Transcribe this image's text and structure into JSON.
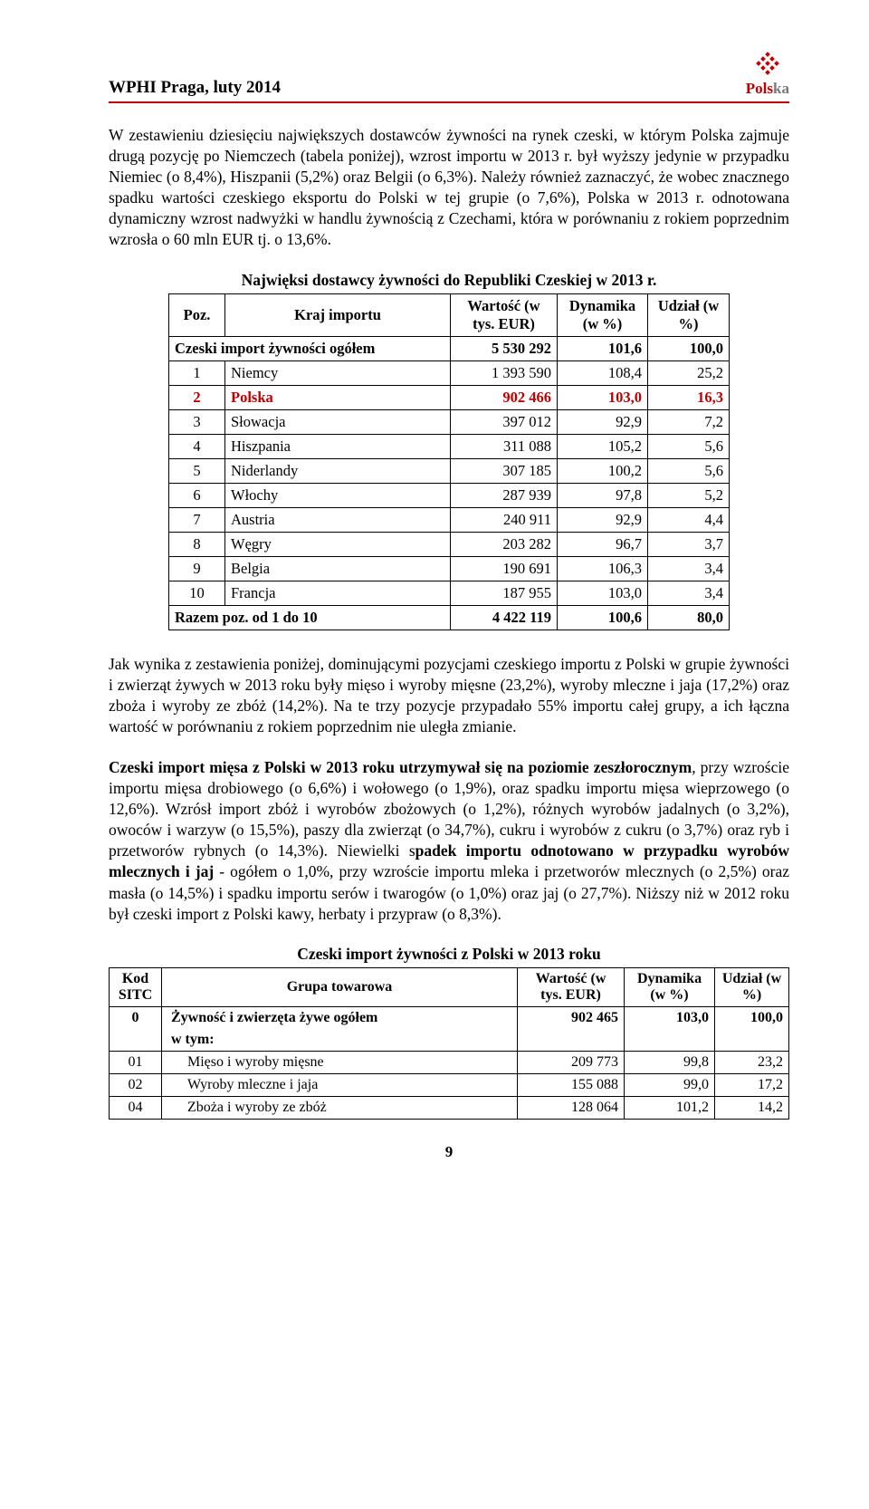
{
  "header": {
    "left": "WPHI  Praga, luty 2014",
    "logo_red": "Pols",
    "logo_gray": "ka"
  },
  "para1": "W zestawieniu dziesięciu największych dostawców żywności na rynek czeski, w którym Polska zajmuje drugą pozycję po Niemczech (tabela poniżej), wzrost importu w 2013 r. był wyższy jedynie w przypadku Niemiec (o 8,4%), Hiszpanii (5,2%) oraz Belgii (o 6,3%). Należy również zaznaczyć, że wobec znacznego spadku wartości czeskiego eksportu do Polski w tej grupie (o 7,6%), Polska w 2013 r. odnotowana dynamiczny wzrost nadwyżki w handlu żywnością z Czechami, która w porównaniu z rokiem poprzednim wzrosła o 60 mln EUR tj. o 13,6%.",
  "table1": {
    "title": "Najwięksi dostawcy żywności do Republiki Czeskiej w 2013 r.",
    "headers": {
      "poz": "Poz.",
      "kraj": "Kraj importu",
      "wartosc": "Wartość (w tys. EUR)",
      "dynamika": "Dynamika (w %)",
      "udzial": "Udział (w %)"
    },
    "total_row": {
      "label": "Czeski import żywności ogółem",
      "wartosc": "5 530 292",
      "dyn": "101,6",
      "udz": "100,0"
    },
    "rows": [
      {
        "poz": "1",
        "name": "Niemcy",
        "wartosc": "1 393 590",
        "dyn": "108,4",
        "udz": "25,2",
        "highlight": false
      },
      {
        "poz": "2",
        "name": "Polska",
        "wartosc": "902 466",
        "dyn": "103,0",
        "udz": "16,3",
        "highlight": true
      },
      {
        "poz": "3",
        "name": "Słowacja",
        "wartosc": "397 012",
        "dyn": "92,9",
        "udz": "7,2",
        "highlight": false
      },
      {
        "poz": "4",
        "name": "Hiszpania",
        "wartosc": "311 088",
        "dyn": "105,2",
        "udz": "5,6",
        "highlight": false
      },
      {
        "poz": "5",
        "name": "Niderlandy",
        "wartosc": "307 185",
        "dyn": "100,2",
        "udz": "5,6",
        "highlight": false
      },
      {
        "poz": "6",
        "name": "Włochy",
        "wartosc": "287 939",
        "dyn": "97,8",
        "udz": "5,2",
        "highlight": false
      },
      {
        "poz": "7",
        "name": "Austria",
        "wartosc": "240 911",
        "dyn": "92,9",
        "udz": "4,4",
        "highlight": false
      },
      {
        "poz": "8",
        "name": "Węgry",
        "wartosc": "203 282",
        "dyn": "96,7",
        "udz": "3,7",
        "highlight": false
      },
      {
        "poz": "9",
        "name": "Belgia",
        "wartosc": "190 691",
        "dyn": "106,3",
        "udz": "3,4",
        "highlight": false
      },
      {
        "poz": "10",
        "name": "Francja",
        "wartosc": "187 955",
        "dyn": "103,0",
        "udz": "3,4",
        "highlight": false
      }
    ],
    "sum_row": {
      "label": "Razem poz. od 1  do 10",
      "wartosc": "4 422 119",
      "dyn": "100,6",
      "udz": "80,0"
    }
  },
  "para2": "Jak wynika z zestawienia poniżej, dominującymi pozycjami czeskiego importu z Polski w grupie żywności i zwierząt żywych w 2013 roku były mięso i wyroby mięsne (23,2%), wyroby mleczne i jaja (17,2%) oraz zboża i wyroby ze zbóż (14,2%). Na te trzy pozycje przypadało 55% importu całej grupy, a ich łączna wartość w porównaniu z rokiem poprzednim nie uległa zmianie.",
  "para3_bold_lead": "Czeski import mięsa z Polski w 2013 roku utrzymywał się na poziomie zeszłorocznym",
  "para3_mid": ", przy wzroście importu mięsa drobiowego (o 6,6%) i  wołowego (o 1,9%), oraz spadku importu mięsa wieprzowego (o 12,6%). Wzrósł import zbóż i wyrobów zbożowych (o 1,2%), różnych wyrobów jadalnych (o 3,2%),  owoców i warzyw (o 15,5%), paszy dla zwierząt (o 34,7%), cukru i wyrobów z cukru (o 3,7%) oraz ryb i przetworów rybnych (o 14,3%). Niewielki s",
  "para3_bold_mid": "padek importu odnotowano w przypadku wyrobów mlecznych i jaj",
  "para3_tail": " - ogółem o 1,0%, przy wzroście importu mleka i przetworów mlecznych (o 2,5%) oraz masła (o 14,5%) i spadku importu serów i twarogów (o 1,0%) oraz jaj (o 27,7%). Niższy niż w 2012 roku był czeski import z Polski kawy, herbaty i przypraw (o 8,3%).",
  "table2": {
    "title": "Czeski import żywności z Polski w 2013 roku",
    "headers": {
      "kod": "Kod SITC",
      "grupa": "Grupa towarowa",
      "wartosc": "Wartość (w tys. EUR)",
      "dynamika": "Dynamika (w %)",
      "udzial": "Udział (w %)"
    },
    "total_row": {
      "code": "0",
      "label": "Żywność i zwierzęta żywe ogółem",
      "sub": "w tym:",
      "wartosc": "902 465",
      "dyn": "103,0",
      "udz": "100,0"
    },
    "rows": [
      {
        "code": "01",
        "name": "Mięso i wyroby mięsne",
        "wartosc": "209 773",
        "dyn": "99,8",
        "udz": "23,2"
      },
      {
        "code": "02",
        "name": "Wyroby mleczne i jaja",
        "wartosc": "155 088",
        "dyn": "99,0",
        "udz": "17,2"
      },
      {
        "code": "04",
        "name": "Zboża i wyroby ze zbóż",
        "wartosc": "128 064",
        "dyn": "101,2",
        "udz": "14,2"
      }
    ]
  },
  "page_number": "9",
  "colors": {
    "accent_red": "#c00000",
    "text": "#000000",
    "gray": "#7a7a7a",
    "background": "#ffffff"
  }
}
